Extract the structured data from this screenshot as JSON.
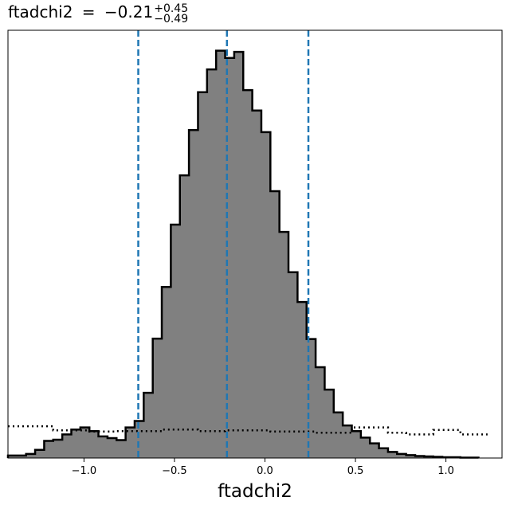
{
  "chart_data": {
    "type": "histogram",
    "title": {
      "param": "ftadchi2",
      "equals": "=",
      "median": "−0.21",
      "upper": "+0.45",
      "lower": "−0.49"
    },
    "xlabel": "ftadchi2",
    "ylabel": "",
    "xlim": [
      -1.42,
      1.31
    ],
    "ylim": [
      0,
      105
    ],
    "x_ticks": [
      {
        "value": -1.0,
        "label": "−1.0"
      },
      {
        "value": -0.5,
        "label": "−0.5"
      },
      {
        "value": 0.0,
        "label": "0.0"
      },
      {
        "value": 0.5,
        "label": "0.5"
      },
      {
        "value": 1.0,
        "label": "1.0"
      }
    ],
    "bin_edges_start": -1.42,
    "bin_width": 0.05,
    "posterior_counts": [
      0.6,
      0.6,
      1.0,
      2.0,
      4.2,
      4.5,
      5.8,
      7.0,
      7.5,
      6.6,
      5.3,
      4.9,
      4.4,
      7.5,
      9.1,
      16.0,
      29.3,
      42.0,
      57.3,
      69.4,
      80.5,
      89.8,
      95.4,
      100.0,
      98.2,
      99.7,
      90.3,
      85.3,
      80.0,
      65.5,
      55.5,
      45.6,
      38.3,
      29.2,
      22.3,
      16.8,
      11.2,
      8.0,
      6.6,
      5.0,
      3.6,
      2.4,
      1.5,
      1.0,
      0.7,
      0.5,
      0.4,
      0.3,
      0.2,
      0.2,
      0.1,
      0.1
    ],
    "prior_counts": [
      7.8,
      7.8,
      7.8,
      7.8,
      7.8,
      6.8,
      6.8,
      6.8,
      6.8,
      6.5,
      6.5,
      6.5,
      6.6,
      6.6,
      6.6,
      6.6,
      6.6,
      7.0,
      7.0,
      7.0,
      7.0,
      6.6,
      6.6,
      6.6,
      6.8,
      6.8,
      6.8,
      6.8,
      6.8,
      6.5,
      6.5,
      6.5,
      6.5,
      6.5,
      6.2,
      6.2,
      6.2,
      6.2,
      7.5,
      7.5,
      7.5,
      7.5,
      6.2,
      6.2,
      5.8,
      5.8,
      5.8,
      6.9,
      6.9,
      6.9,
      5.8,
      5.8,
      5.8
    ],
    "quantile_lines": [
      -0.7,
      -0.21,
      0.24
    ],
    "colors": {
      "fill": "#808080",
      "edge": "#000000",
      "prior": "#000000",
      "quantile": "#1f77b4"
    },
    "grid": false,
    "legend": "none"
  }
}
